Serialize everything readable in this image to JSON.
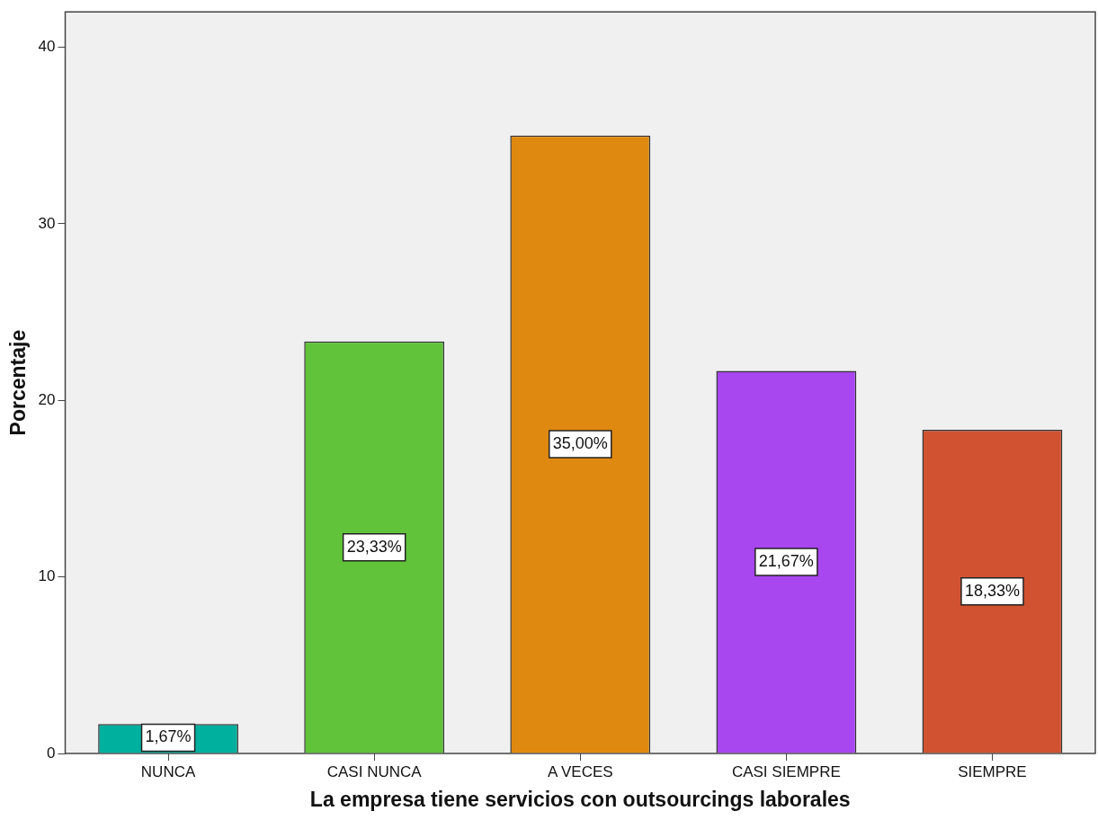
{
  "chart_data": {
    "type": "bar",
    "xlabel": "La empresa tiene servicios con outsourcings laborales",
    "ylabel": "Porcentaje",
    "categories": [
      "NUNCA",
      "CASI NUNCA",
      "A VECES",
      "CASI SIEMPRE",
      "SIEMPRE"
    ],
    "values": [
      1.67,
      23.33,
      35.0,
      21.67,
      18.33
    ],
    "colors": [
      "#00b09f",
      "#60c33a",
      "#e08910",
      "#a846ef",
      "#d05231"
    ],
    "value_labels": [
      "1,67%",
      "23,33%",
      "35,00%",
      "21,67%",
      "18,33%"
    ],
    "ylim": [
      0,
      42
    ],
    "yticks": [
      0,
      10,
      20,
      30,
      40
    ],
    "grid": false,
    "legend": false
  }
}
